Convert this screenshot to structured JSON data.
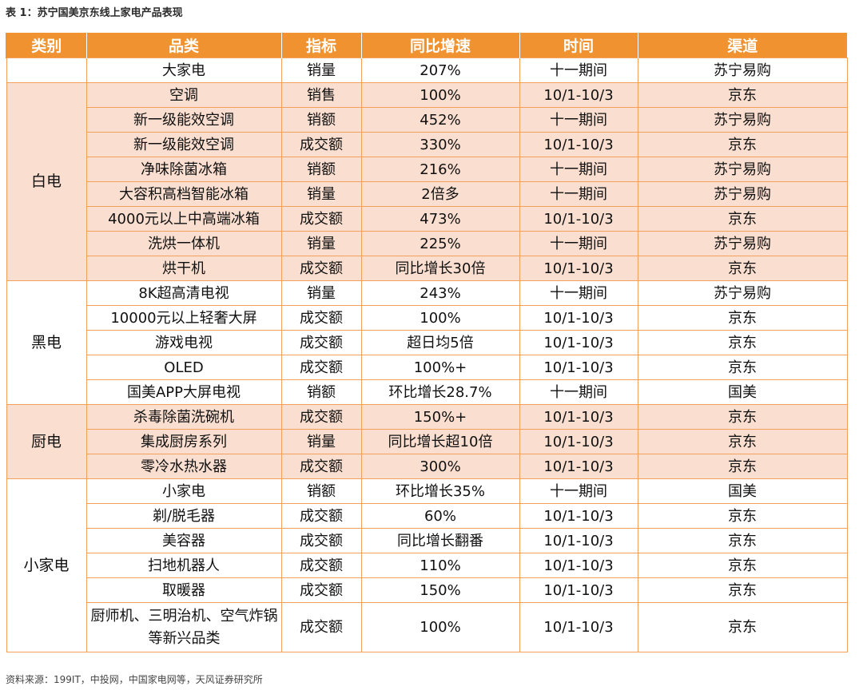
{
  "caption": "表 1：苏宁国美京东线上家电产品表现",
  "source": "资料来源：199IT，中投网，中国家电网等，天风证券研究所",
  "headers": [
    "类别",
    "品类",
    "指标",
    "同比增速",
    "时间",
    "渠道"
  ],
  "groups": [
    {
      "name": "",
      "shaded": false,
      "rows": [
        [
          "大家电",
          "销量",
          "207%",
          "十一期间",
          "苏宁易购"
        ]
      ]
    },
    {
      "name": "白电",
      "shaded": true,
      "rows": [
        [
          "空调",
          "销售",
          "100%",
          "10/1-10/3",
          "京东"
        ],
        [
          "新一级能效空调",
          "销额",
          "452%",
          "十一期间",
          "苏宁易购"
        ],
        [
          "新一级能效空调",
          "成交额",
          "330%",
          "10/1-10/3",
          "京东"
        ],
        [
          "净味除菌冰箱",
          "销额",
          "216%",
          "十一期间",
          "苏宁易购"
        ],
        [
          "大容积高档智能冰箱",
          "销量",
          "2倍多",
          "十一期间",
          "苏宁易购"
        ],
        [
          "4000元以上中高端冰箱",
          "成交额",
          "473%",
          "10/1-10/3",
          "京东"
        ],
        [
          "洗烘一体机",
          "销量",
          "225%",
          "十一期间",
          "苏宁易购"
        ],
        [
          "烘干机",
          "成交额",
          "同比增长30倍",
          "10/1-10/3",
          "京东"
        ]
      ]
    },
    {
      "name": "黑电",
      "shaded": false,
      "rows": [
        [
          "8K超高清电视",
          "销量",
          "243%",
          "十一期间",
          "苏宁易购"
        ],
        [
          "10000元以上轻奢大屏",
          "成交额",
          "100%",
          "10/1-10/3",
          "京东"
        ],
        [
          "游戏电视",
          "成交额",
          "超日均5倍",
          "10/1-10/3",
          "京东"
        ],
        [
          "OLED",
          "成交额",
          "100%+",
          "10/1-10/3",
          "京东"
        ],
        [
          "国美APP大屏电视",
          "销额",
          "环比增长28.7%",
          "十一期间",
          "国美"
        ]
      ]
    },
    {
      "name": "厨电",
      "shaded": true,
      "rows": [
        [
          "杀毒除菌洗碗机",
          "成交额",
          "150%+",
          "10/1-10/3",
          "京东"
        ],
        [
          "集成厨房系列",
          "销量",
          "同比增长超10倍",
          "10/1-10/3",
          "京东"
        ],
        [
          "零冷水热水器",
          "成交额",
          "300%",
          "10/1-10/3",
          "京东"
        ]
      ]
    },
    {
      "name": "小家电",
      "shaded": false,
      "rows": [
        [
          "小家电",
          "销额",
          "环比增长35%",
          "十一期间",
          "国美"
        ],
        [
          "剃/脱毛器",
          "成交额",
          "60%",
          "10/1-10/3",
          "京东"
        ],
        [
          "美容器",
          "成交额",
          "同比增长翻番",
          "10/1-10/3",
          "京东"
        ],
        [
          "扫地机器人",
          "成交额",
          "110%",
          "10/1-10/3",
          "京东"
        ],
        [
          "取暖器",
          "成交额",
          "150%",
          "10/1-10/3",
          "京东"
        ],
        [
          "厨师机、三明治机、空气炸锅等新兴品类",
          "成交额",
          "100%",
          "10/1-10/3",
          "京东"
        ]
      ]
    }
  ]
}
